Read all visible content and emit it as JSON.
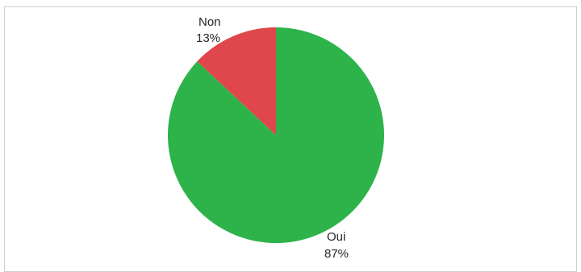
{
  "chart_data": {
    "type": "pie",
    "title": "",
    "slices": [
      {
        "label": "Oui",
        "value": 87,
        "value_label": "87%",
        "color": "#2db34a"
      },
      {
        "label": "Non",
        "value": 13,
        "value_label": "13%",
        "color": "#e0474c"
      }
    ],
    "start_angle_deg": 0,
    "direction": "clockwise",
    "legend": "none"
  }
}
